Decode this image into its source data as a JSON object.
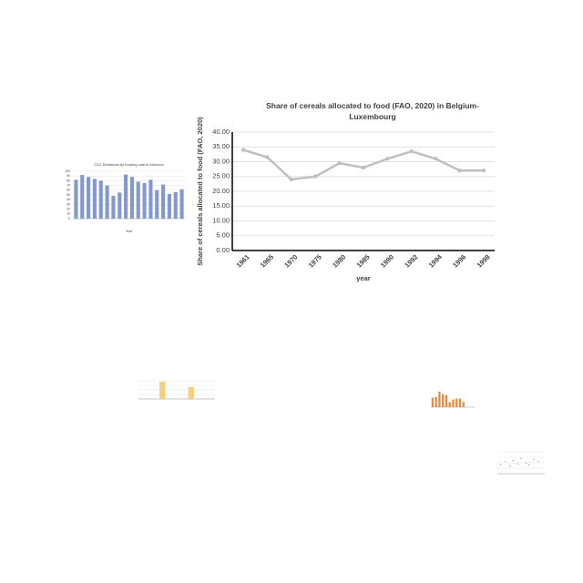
{
  "chart_data": [
    {
      "type": "line",
      "title": "Share of cereals allocated to food (FAO, 2020)  in Belgium-Luxembourg",
      "y_label": "Share of cereals allocated to food (FAO, 2020)",
      "x_label": "year",
      "categories": [
        "1961",
        "1965",
        "1970",
        "1975",
        "1980",
        "1985",
        "1990",
        "1992",
        "1994",
        "1996",
        "1998"
      ],
      "values": [
        34,
        31.5,
        24,
        25,
        29.5,
        28,
        31,
        33.5,
        31,
        27,
        27
      ],
      "color": "#bfbfbf",
      "ylim": [
        0,
        40
      ],
      "yticks": [
        {
          "value": 0,
          "label": "0.00"
        },
        {
          "value": 5,
          "label": "5.00"
        },
        {
          "value": 10,
          "label": "10.00"
        },
        {
          "value": 15,
          "label": "15.00"
        },
        {
          "value": 20,
          "label": "20.00"
        },
        {
          "value": 25,
          "label": "25.00"
        },
        {
          "value": 30,
          "label": "30.00"
        },
        {
          "value": 35,
          "label": "35.00"
        },
        {
          "value": 40,
          "label": "40.00"
        }
      ],
      "grid": true
    },
    {
      "type": "bar",
      "title": "CO2 Emissions by burning coal in Morocco",
      "x_label": "Year",
      "categories": [
        null,
        null,
        null,
        null,
        null,
        null,
        null,
        null,
        null,
        null,
        null,
        null,
        null,
        null,
        null,
        null,
        null,
        null
      ],
      "values": [
        82,
        92,
        88,
        84,
        80,
        70,
        48,
        55,
        93,
        88,
        78,
        75,
        82,
        60,
        72,
        52,
        56,
        62
      ],
      "color": "#8497cf",
      "ylim": [
        0,
        100
      ],
      "yticks": [
        0,
        10,
        20,
        30,
        40,
        50,
        60,
        70,
        80,
        90,
        100
      ],
      "grid": true
    },
    {
      "type": "bar",
      "categories": [
        null,
        null,
        null,
        null,
        null,
        null,
        null,
        null
      ],
      "values": [
        0,
        0,
        95,
        0,
        0,
        65,
        0,
        0
      ],
      "color": "#f5cf7a",
      "ylim": [
        0,
        100
      ],
      "grid": true
    },
    {
      "type": "bar",
      "categories": [
        null,
        null,
        null,
        null,
        null,
        null,
        null,
        null,
        null,
        null,
        null,
        null,
        null
      ],
      "values": [
        55,
        60,
        90,
        75,
        70,
        30,
        45,
        50,
        50,
        30,
        0,
        0,
        0
      ],
      "color": "#e8893a",
      "ylim": [
        0,
        100
      ],
      "grid": false
    },
    {
      "type": "scatter",
      "x": [
        2,
        5,
        8,
        10,
        13,
        15,
        18,
        20,
        23,
        26
      ],
      "values": [
        40,
        55,
        35,
        60,
        45,
        70,
        50,
        40,
        65,
        55
      ],
      "color": "#8a8a8a",
      "xlim": [
        0,
        30
      ],
      "ylim": [
        0,
        100
      ],
      "grid": true
    }
  ]
}
